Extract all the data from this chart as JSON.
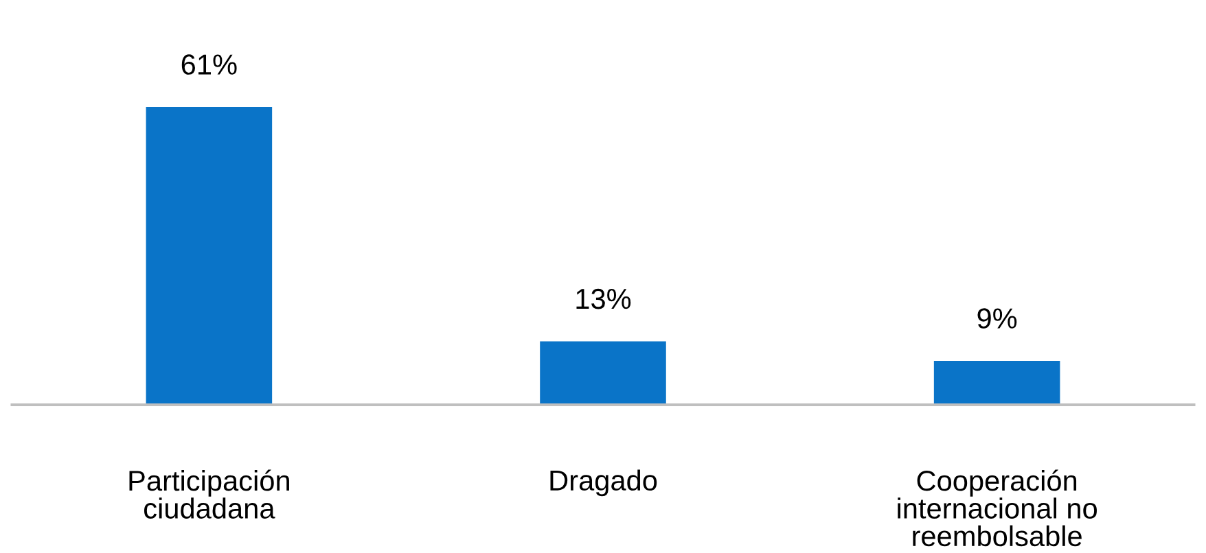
{
  "chart_data": {
    "type": "bar",
    "categories": [
      "Participación\nciudadana",
      "Dragado",
      "Cooperación\ninternacional no\nreembolsable"
    ],
    "values": [
      61,
      13,
      9
    ],
    "value_labels": [
      "61%",
      "13%",
      "9%"
    ],
    "color": "#0a74c8",
    "grid": false,
    "legend": false
  }
}
